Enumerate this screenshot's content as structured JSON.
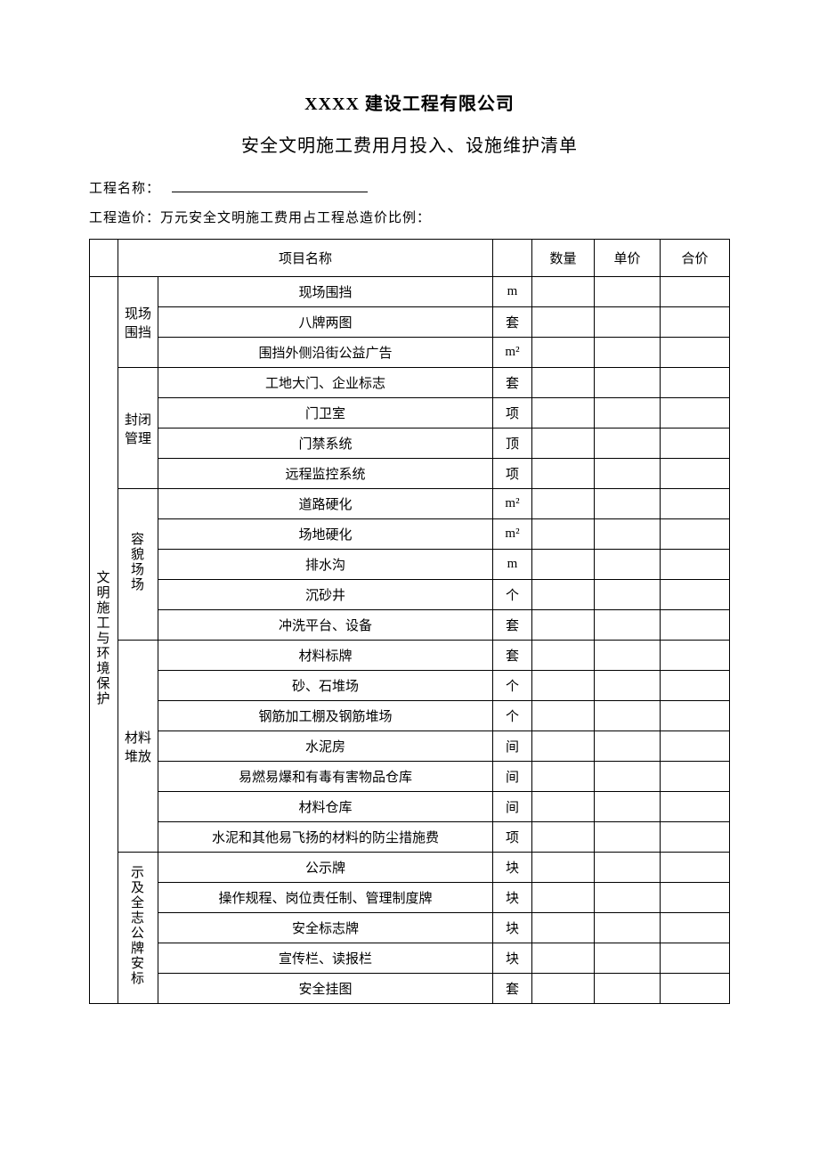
{
  "title_line1": "XXXX 建设工程有限公司",
  "title_line2": "安全文明施工费用月投入、设施维护清单",
  "label_project_name": "工程名称：",
  "label_project_cost": "工程造价：万元安全文明施工费用占工程总造价比例：",
  "header": {
    "item_name": "项目名称",
    "qty": "数量",
    "unit_price": "单价",
    "total": "合价"
  },
  "category1": "文明施工与环境保护",
  "groups": [
    {
      "name": "现场围挡",
      "vertical": false,
      "rows": [
        {
          "item": "现场围挡",
          "unit": "m"
        },
        {
          "item": "八牌两图",
          "unit": "套"
        },
        {
          "item": "围挡外侧沿街公益广告",
          "unit": "m²"
        }
      ]
    },
    {
      "name": "封闭管理",
      "vertical": false,
      "rows": [
        {
          "item": "工地大门、企业标志",
          "unit": "套"
        },
        {
          "item": "门卫室",
          "unit": "项"
        },
        {
          "item": "门禁系统",
          "unit": "顶"
        },
        {
          "item": "远程监控系统",
          "unit": "项"
        }
      ]
    },
    {
      "name": "容貌场场",
      "vertical": true,
      "rows": [
        {
          "item": "道路硬化",
          "unit": "m²"
        },
        {
          "item": "场地硬化",
          "unit": "m²"
        },
        {
          "item": "排水沟",
          "unit": "m"
        },
        {
          "item": "沉砂井",
          "unit": "个"
        },
        {
          "item": "冲洗平台、设备",
          "unit": "套"
        }
      ]
    },
    {
      "name": "材料堆放",
      "vertical": false,
      "rows": [
        {
          "item": "材料标牌",
          "unit": "套"
        },
        {
          "item": "砂、石堆场",
          "unit": "个"
        },
        {
          "item": "钢筋加工棚及钢筋堆场",
          "unit": "个"
        },
        {
          "item": "水泥房",
          "unit": "间"
        },
        {
          "item": "易燃易爆和有毒有害物品仓库",
          "unit": "间"
        },
        {
          "item": "材料仓库",
          "unit": "间"
        },
        {
          "item": "水泥和其他易飞扬的材料的防尘措施费",
          "unit": "项"
        }
      ]
    },
    {
      "name": "示及全志公牌安标",
      "vertical": true,
      "rows": [
        {
          "item": "公示牌",
          "unit": "块"
        },
        {
          "item": "操作规程、岗位责任制、管理制度牌",
          "unit": "块"
        },
        {
          "item": "安全标志牌",
          "unit": "块"
        },
        {
          "item": "宣传栏、读报栏",
          "unit": "块"
        },
        {
          "item": "安全挂图",
          "unit": "套"
        }
      ]
    }
  ]
}
